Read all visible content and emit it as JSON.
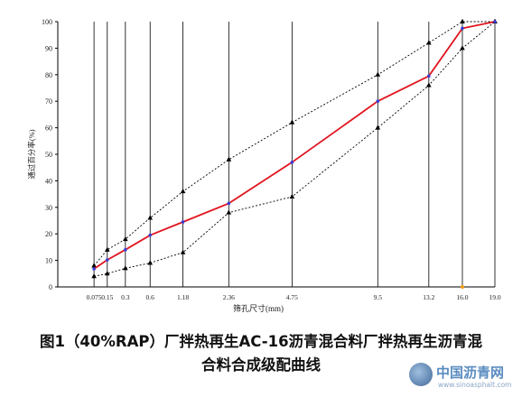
{
  "chart_data": {
    "type": "line",
    "title": "",
    "xlabel": "筛孔尺寸(mm)",
    "ylabel": "通过百分率(%)",
    "ylim": [
      0,
      100
    ],
    "y_ticks": [
      "0",
      "10",
      "20",
      "30",
      "40",
      "50",
      "60",
      "70",
      "80",
      "90",
      "100"
    ],
    "x_scale": "power-0.45",
    "grid": "vertical-at-sieves",
    "sieves": [
      0.075,
      0.15,
      0.3,
      0.6,
      1.18,
      2.36,
      4.75,
      9.5,
      13.2,
      16.0,
      19.0
    ],
    "x_tick_labels": [
      "0.075",
      "0.15",
      "0.3",
      "0.6",
      "1.18",
      "2.36",
      "4.75",
      "9.5",
      "13.2",
      "16.0",
      "19.0"
    ],
    "series": [
      {
        "role": "upper-limit",
        "x": [
          0.075,
          0.15,
          0.3,
          0.6,
          1.18,
          2.36,
          4.75,
          9.5,
          13.2,
          16.0,
          19.0
        ],
        "values": [
          8,
          14,
          18,
          26,
          36,
          48,
          62,
          80,
          92,
          100,
          100
        ],
        "color": "#000000",
        "dash": true,
        "marker": "triangle"
      },
      {
        "role": "lower-limit",
        "x": [
          0.075,
          0.15,
          0.3,
          0.6,
          1.18,
          2.36,
          4.75,
          9.5,
          13.2,
          16.0,
          19.0
        ],
        "values": [
          4,
          5,
          7,
          9,
          13,
          28,
          34,
          60,
          76,
          90,
          100
        ],
        "color": "#000000",
        "dash": true,
        "marker": "triangle"
      },
      {
        "role": "synthetic-gradation",
        "x": [
          0.075,
          0.15,
          0.3,
          0.6,
          1.18,
          2.36,
          4.75,
          9.5,
          13.2,
          16.0,
          19.0
        ],
        "values": [
          6.8,
          10.2,
          14.0,
          19.5,
          24.5,
          31.5,
          47.0,
          70.0,
          79.5,
          97.5,
          100
        ],
        "color": "#e0141e",
        "dash": false,
        "marker": "dot",
        "marker_color": "#3b3bd6"
      }
    ]
  },
  "caption": {
    "line1": "图1（40%RAP）厂拌热再生AC-16沥青混合料厂拌热再生沥青混",
    "line2": "合料合成级配曲线"
  },
  "watermark": {
    "title": "中国沥青网",
    "url": "www.sinoasphalt.com"
  }
}
